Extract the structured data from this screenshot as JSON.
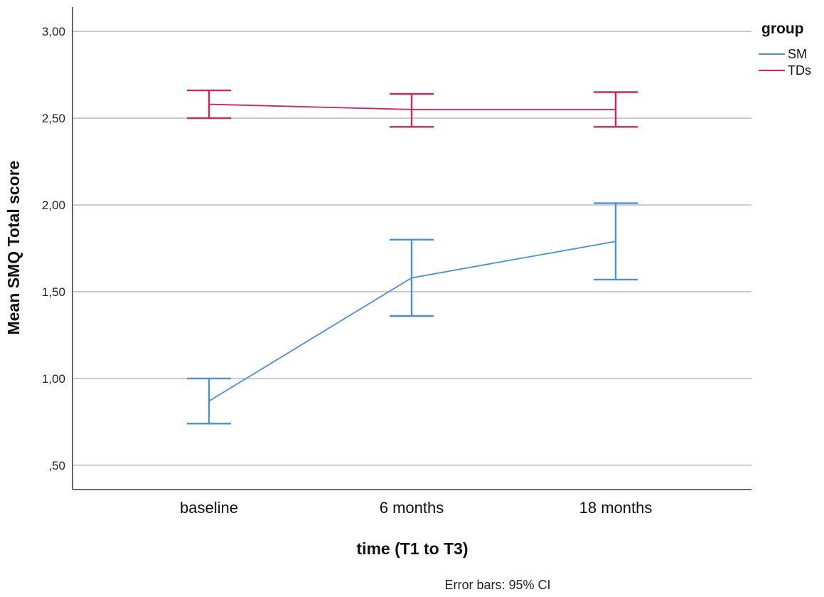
{
  "chart_data": {
    "type": "line",
    "title": "",
    "xlabel": "time (T1 to T3)",
    "ylabel": "Mean SMQ Total score",
    "categories": [
      "baseline",
      "6 months",
      "18 months"
    ],
    "ylim": [
      0.36,
      3.14
    ],
    "yticks": [
      0.5,
      1.0,
      1.5,
      2.0,
      2.5,
      3.0
    ],
    "ytick_labels": [
      ",50",
      "1,00",
      "1,50",
      "2,00",
      "2,50",
      "3,00"
    ],
    "grid": true,
    "legend": {
      "title": "group",
      "position": "top-right"
    },
    "series": [
      {
        "name": "SM",
        "color": "#4a90d9",
        "values": [
          0.87,
          1.58,
          1.79
        ],
        "ci_lower": [
          0.74,
          1.36,
          1.57
        ],
        "ci_upper": [
          1.0,
          1.8,
          2.01
        ]
      },
      {
        "name": "TDs",
        "color": "#d0245a",
        "values": [
          2.58,
          2.55,
          2.55
        ],
        "ci_lower": [
          2.5,
          2.45,
          2.45
        ],
        "ci_upper": [
          2.66,
          2.64,
          2.65
        ]
      }
    ],
    "footnote": "Error bars: 95% CI"
  }
}
